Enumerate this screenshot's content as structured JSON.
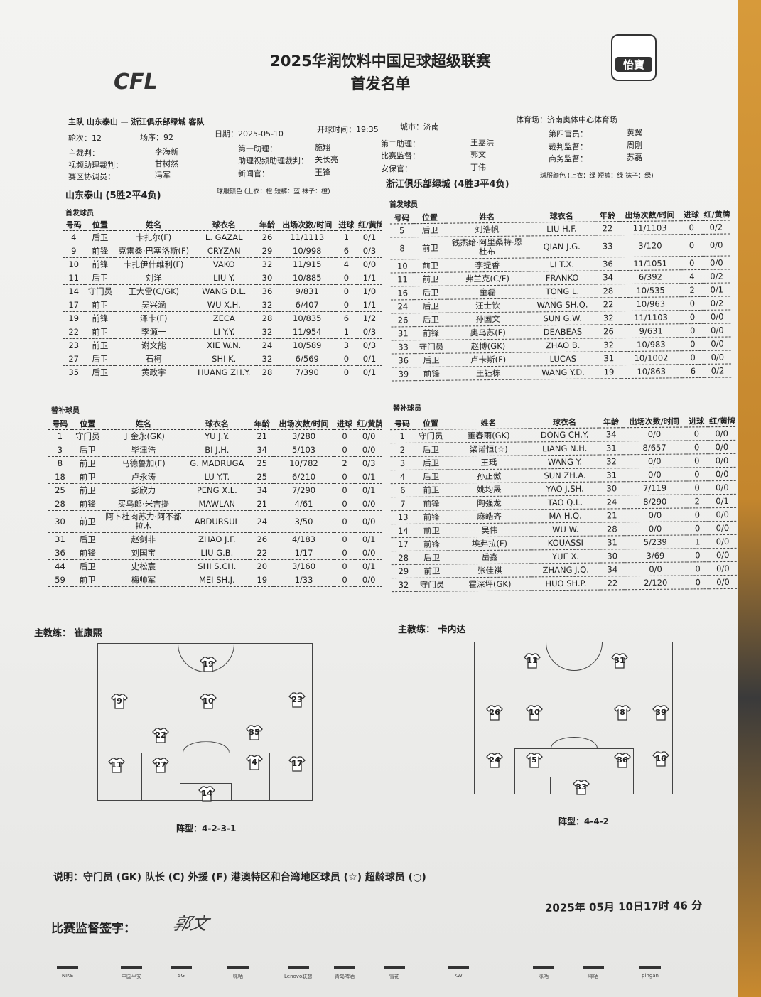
{
  "header": {
    "title": "2025华润饮料中国足球超级联赛",
    "subtitle": "首发名单",
    "cfl_logo": "CFL",
    "csl_logo": "怡寶 CSL"
  },
  "match": {
    "teams_line": "主队 山东泰山 — 浙江俱乐部绿城 客队",
    "round": "轮次：12",
    "match_no": "场序：92",
    "date": "日期：2025-05-10",
    "kickoff": "开球时间：19:35",
    "city": "城市：济南",
    "stadium": "体育场：济南奥体中心体育场",
    "officials": [
      {
        "label": "主裁判：",
        "name": "李海新"
      },
      {
        "label": "视频助理裁判：",
        "name": "甘树然"
      },
      {
        "label": "赛区协调员：",
        "name": "冯军"
      },
      {
        "label": "第一助理：",
        "name": "施翔"
      },
      {
        "label": "助理视频助理裁判：",
        "name": "关长亮"
      },
      {
        "label": "新闻官：",
        "name": "王锋"
      },
      {
        "label": "第二助理：",
        "name": "王嘉洪"
      },
      {
        "label": "比赛监督：",
        "name": "郭文"
      },
      {
        "label": "安保官：",
        "name": "丁伟"
      },
      {
        "label": "第四官员：",
        "name": "黄翼"
      },
      {
        "label": "裁判监督：",
        "name": "周刚"
      },
      {
        "label": "商务监督：",
        "name": "苏磊"
      }
    ]
  },
  "columns": [
    "号码",
    "位置",
    "姓名",
    "球衣名",
    "年龄",
    "出场次数/时间",
    "进球",
    "红/黄牌"
  ],
  "home": {
    "name": "山东泰山 (5胜2平4负)",
    "kit": "球服颜色 (上衣：橙 短裤：蓝 袜子：橙)",
    "starters_label": "首发球员",
    "subs_label": "替补球员",
    "starters": [
      [
        "4",
        "后卫",
        "卡扎尔(F)",
        "L. GAZAL",
        "26",
        "11/1113",
        "1",
        "0/1"
      ],
      [
        "9",
        "前锋",
        "克雷桑·巴塞洛斯(F)",
        "CRYZAN",
        "29",
        "10/998",
        "6",
        "0/3"
      ],
      [
        "10",
        "前锋",
        "卡扎伊什维利(F)",
        "VAKO",
        "32",
        "11/915",
        "4",
        "0/0"
      ],
      [
        "11",
        "后卫",
        "刘洋",
        "LIU Y.",
        "30",
        "10/885",
        "0",
        "1/1"
      ],
      [
        "14",
        "守门员",
        "王大雷(C/GK)",
        "WANG D.L.",
        "36",
        "9/831",
        "0",
        "1/0"
      ],
      [
        "17",
        "前卫",
        "吴兴涵",
        "WU X.H.",
        "32",
        "6/407",
        "0",
        "1/1"
      ],
      [
        "19",
        "前锋",
        "泽卡(F)",
        "ZECA",
        "28",
        "10/835",
        "6",
        "1/2"
      ],
      [
        "22",
        "前卫",
        "李源一",
        "LI Y.Y.",
        "32",
        "11/954",
        "1",
        "0/3"
      ],
      [
        "23",
        "前卫",
        "谢文能",
        "XIE W.N.",
        "24",
        "10/589",
        "3",
        "0/3"
      ],
      [
        "27",
        "后卫",
        "石柯",
        "SHI K.",
        "32",
        "6/569",
        "0",
        "0/1"
      ],
      [
        "35",
        "后卫",
        "黄政宇",
        "HUANG ZH.Y.",
        "28",
        "7/390",
        "0",
        "0/1"
      ]
    ],
    "subs": [
      [
        "1",
        "守门员",
        "于金永(GK)",
        "YU J.Y.",
        "21",
        "3/280",
        "0",
        "0/0"
      ],
      [
        "3",
        "后卫",
        "毕津浩",
        "BI J.H.",
        "34",
        "5/103",
        "0",
        "0/0"
      ],
      [
        "8",
        "前卫",
        "马德鲁加(F)",
        "G. MADRUGA",
        "25",
        "10/782",
        "2",
        "0/3"
      ],
      [
        "18",
        "前卫",
        "卢永涛",
        "LU Y.T.",
        "25",
        "6/210",
        "0",
        "0/1"
      ],
      [
        "25",
        "前卫",
        "彭欣力",
        "PENG X.L.",
        "34",
        "7/290",
        "0",
        "0/1"
      ],
      [
        "28",
        "前锋",
        "买乌郎·米吉提",
        "MAWLAN",
        "21",
        "4/61",
        "0",
        "0/0"
      ],
      [
        "30",
        "前卫",
        "阿卜杜肉苏力·阿不都拉木",
        "ABDURSUL",
        "24",
        "3/50",
        "0",
        "0/0"
      ],
      [
        "31",
        "后卫",
        "赵剑非",
        "ZHAO J.F.",
        "26",
        "4/183",
        "0",
        "0/1"
      ],
      [
        "36",
        "前锋",
        "刘国宝",
        "LIU G.B.",
        "22",
        "1/17",
        "0",
        "0/0"
      ],
      [
        "44",
        "后卫",
        "史松宸",
        "SHI S.CH.",
        "20",
        "3/160",
        "0",
        "0/1"
      ],
      [
        "59",
        "前卫",
        "梅帅军",
        "MEI SH.J.",
        "19",
        "1/33",
        "0",
        "0/0"
      ]
    ],
    "coach": "主教练：  崔康熙",
    "formation": "阵型：4-2-3-1",
    "lineup": [
      "19",
      "9",
      "10",
      "23",
      "22",
      "35",
      "11",
      "27",
      "4",
      "17",
      "14"
    ]
  },
  "away": {
    "name": "浙江俱乐部绿城 (4胜3平4负)",
    "kit": "球服颜色 (上衣：绿 短裤：绿 袜子：绿)",
    "starters_label": "首发球员",
    "subs_label": "替补球员",
    "starters": [
      [
        "5",
        "后卫",
        "刘浩帆",
        "LIU H.F.",
        "22",
        "11/1103",
        "0",
        "0/2"
      ],
      [
        "8",
        "前卫",
        "钱杰给·阿里桑特·恩杜布",
        "QIAN J.G.",
        "33",
        "3/120",
        "0",
        "0/0"
      ],
      [
        "10",
        "前卫",
        "李提香",
        "LI T.X.",
        "36",
        "11/1051",
        "0",
        "0/0"
      ],
      [
        "11",
        "前卫",
        "弗兰克(C/F)",
        "FRANKO",
        "34",
        "6/392",
        "4",
        "0/2"
      ],
      [
        "16",
        "后卫",
        "童磊",
        "TONG L.",
        "28",
        "10/535",
        "2",
        "0/1"
      ],
      [
        "24",
        "后卫",
        "汪士钦",
        "WANG SH.Q.",
        "22",
        "10/963",
        "0",
        "0/2"
      ],
      [
        "26",
        "后卫",
        "孙国文",
        "SUN G.W.",
        "32",
        "11/1103",
        "0",
        "0/0"
      ],
      [
        "31",
        "前锋",
        "奥乌苏(F)",
        "DEABEAS",
        "26",
        "9/631",
        "0",
        "0/0"
      ],
      [
        "33",
        "守门员",
        "赵博(GK)",
        "ZHAO B.",
        "32",
        "10/983",
        "0",
        "0/0"
      ],
      [
        "36",
        "后卫",
        "卢卡斯(F)",
        "LUCAS",
        "31",
        "10/1002",
        "0",
        "0/0"
      ],
      [
        "39",
        "前锋",
        "王钰栋",
        "WANG Y.D.",
        "19",
        "10/863",
        "6",
        "0/2"
      ]
    ],
    "subs": [
      [
        "1",
        "守门员",
        "董春雨(GK)",
        "DONG CH.Y.",
        "34",
        "0/0",
        "0",
        "0/0"
      ],
      [
        "2",
        "后卫",
        "梁诺恒(☆)",
        "LIANG N.H.",
        "31",
        "8/657",
        "0",
        "0/0"
      ],
      [
        "3",
        "后卫",
        "王瑀",
        "WANG Y.",
        "32",
        "0/0",
        "0",
        "0/0"
      ],
      [
        "4",
        "后卫",
        "孙正傲",
        "SUN ZH.A.",
        "31",
        "0/0",
        "0",
        "0/0"
      ],
      [
        "6",
        "前卫",
        "姚均晟",
        "YAO J.SH.",
        "30",
        "7/119",
        "0",
        "0/0"
      ],
      [
        "7",
        "前锋",
        "陶强龙",
        "TAO Q.L.",
        "24",
        "8/290",
        "2",
        "0/1"
      ],
      [
        "13",
        "前锋",
        "麻皓齐",
        "MA H.Q.",
        "21",
        "0/0",
        "0",
        "0/0"
      ],
      [
        "14",
        "前卫",
        "吴伟",
        "WU W.",
        "28",
        "0/0",
        "0",
        "0/0"
      ],
      [
        "17",
        "前锋",
        "埃弗拉(F)",
        "KOUASSI",
        "31",
        "5/239",
        "1",
        "0/0"
      ],
      [
        "28",
        "后卫",
        "岳鑫",
        "YUE X.",
        "30",
        "3/69",
        "0",
        "0/0"
      ],
      [
        "29",
        "前卫",
        "张佳祺",
        "ZHANG J.Q.",
        "34",
        "0/0",
        "0",
        "0/0"
      ],
      [
        "32",
        "守门员",
        "霍深坪(GK)",
        "HUO SH.P.",
        "22",
        "2/120",
        "0",
        "0/0"
      ]
    ],
    "coach": "主教练：  卡内达",
    "formation": "阵型：4-4-2",
    "lineup": [
      "11",
      "31",
      "26",
      "10",
      "8",
      "39",
      "24",
      "5",
      "36",
      "16",
      "33"
    ]
  },
  "footer": {
    "legend": "说明：守门员 (GK) 队长 (C) 外援 (F) 港澳特区和台湾地区球员 (☆) 超龄球员 (○)",
    "sign_label": "比赛监督签字：",
    "signature": "郭文",
    "timestamp": "2025年  05月 10日17时 46 分",
    "sponsors": [
      "NIKE",
      "中国平安",
      "5G",
      "咪咕",
      "Lenovo联想",
      "青岛啤酒",
      "雪花",
      "KW",
      "咪咕",
      "咪咕",
      "pingan"
    ]
  }
}
